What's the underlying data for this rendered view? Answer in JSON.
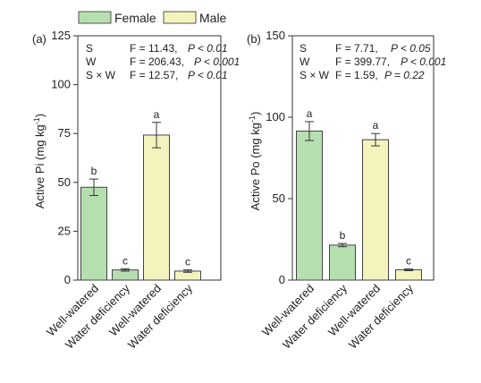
{
  "chart_data": [
    {
      "type": "bar",
      "panel_label": "(a)",
      "ylabel": "Active Pi (mg kg -1)",
      "ylabel_main": "Active Pi (mg kg",
      "ylabel_sup": "-1",
      "ylabel_close": ")",
      "ylim": [
        0,
        125
      ],
      "yticks": [
        0,
        25,
        50,
        75,
        100,
        125
      ],
      "categories": [
        "Well-watered",
        "Water deficiency",
        "Well-watered",
        "Water deficiency"
      ],
      "values": [
        47.5,
        5.2,
        74.2,
        4.6
      ],
      "errors": [
        4.2,
        0.6,
        6.5,
        0.6
      ],
      "colors": [
        "#b6dfb0",
        "#b6dfb0",
        "#f4f3bd",
        "#f4f3bd"
      ],
      "letters": [
        "b",
        "c",
        "a",
        "c"
      ],
      "stats": [
        {
          "term": "S",
          "f": "F = 11.43,",
          "p": "P < 0.01"
        },
        {
          "term": "W",
          "f": "F = 206.43,",
          "p": "P < 0.001"
        },
        {
          "term": "S × W",
          "f": "F = 12.57,",
          "p": "P < 0.01"
        }
      ]
    },
    {
      "type": "bar",
      "panel_label": "(b)",
      "ylabel": "Active Po (mg kg -1)",
      "ylabel_main": "Active Po (mg kg",
      "ylabel_sup": "-1",
      "ylabel_close": ")",
      "ylim": [
        0,
        150
      ],
      "yticks": [
        0,
        50,
        100,
        150
      ],
      "categories": [
        "Well-watered",
        "Water deficiency",
        "Well-watered",
        "Water deficiency"
      ],
      "values": [
        91.5,
        21.5,
        86.2,
        6.3
      ],
      "errors": [
        5.8,
        1.0,
        3.8,
        0.5
      ],
      "colors": [
        "#b6dfb0",
        "#b6dfb0",
        "#f4f3bd",
        "#f4f3bd"
      ],
      "letters": [
        "a",
        "b",
        "a",
        "c"
      ],
      "stats": [
        {
          "term": "S",
          "f": "F = 7.71,",
          "p": "P < 0.05"
        },
        {
          "term": "W",
          "f": "F = 399.77,",
          "p": "P < 0.001"
        },
        {
          "term": "S × W",
          "f": "F = 1.59,",
          "p": "P = 0.22"
        }
      ]
    }
  ],
  "legend": [
    {
      "label": "Female",
      "color": "#b6dfb0"
    },
    {
      "label": "Male",
      "color": "#f4f3bd"
    }
  ]
}
